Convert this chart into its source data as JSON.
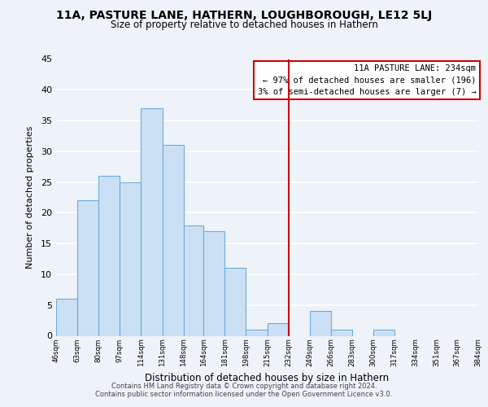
{
  "title": "11A, PASTURE LANE, HATHERN, LOUGHBOROUGH, LE12 5LJ",
  "subtitle": "Size of property relative to detached houses in Hathern",
  "xlabel": "Distribution of detached houses by size in Hathern",
  "ylabel": "Number of detached properties",
  "bar_edges": [
    46,
    63,
    80,
    97,
    114,
    131,
    148,
    164,
    181,
    198,
    215,
    232,
    249,
    266,
    283,
    300,
    317,
    334,
    351,
    367,
    384
  ],
  "bar_heights": [
    6,
    22,
    26,
    25,
    37,
    31,
    18,
    17,
    11,
    1,
    2,
    0,
    4,
    1,
    0,
    1,
    0,
    0,
    0,
    0
  ],
  "tick_labels": [
    "46sqm",
    "63sqm",
    "80sqm",
    "97sqm",
    "114sqm",
    "131sqm",
    "148sqm",
    "164sqm",
    "181sqm",
    "198sqm",
    "215sqm",
    "232sqm",
    "249sqm",
    "266sqm",
    "283sqm",
    "300sqm",
    "317sqm",
    "334sqm",
    "351sqm",
    "367sqm",
    "384sqm"
  ],
  "bar_color": "#cce0f5",
  "bar_edge_color": "#6aaed6",
  "vline_x": 232,
  "vline_color": "#cc0000",
  "annotation_title": "11A PASTURE LANE: 234sqm",
  "annotation_line1": "← 97% of detached houses are smaller (196)",
  "annotation_line2": "3% of semi-detached houses are larger (7) →",
  "ylim": [
    0,
    45
  ],
  "yticks": [
    0,
    5,
    10,
    15,
    20,
    25,
    30,
    35,
    40,
    45
  ],
  "footer_line1": "Contains HM Land Registry data © Crown copyright and database right 2024.",
  "footer_line2": "Contains public sector information licensed under the Open Government Licence v3.0.",
  "background_color": "#eef2f9"
}
